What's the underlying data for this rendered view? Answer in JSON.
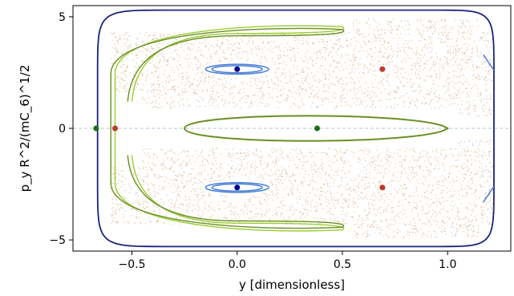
{
  "chart_data": {
    "type": "scatter",
    "title": "",
    "xlabel": "y [dimensionless]",
    "ylabel": "p_y R^2/(mC_6)^1/2",
    "xlim": [
      -0.78,
      1.3
    ],
    "ylim": [
      -5.5,
      5.5
    ],
    "x_ticks": [
      -0.5,
      0.0,
      0.5,
      1.0
    ],
    "y_ticks": [
      -5,
      0,
      5
    ],
    "x_tick_labels": [
      "−0.5",
      "0.0",
      "0.5",
      "1.0"
    ],
    "y_tick_labels": [
      "−5",
      "0",
      "5"
    ],
    "grid": false,
    "reference_line_y": 0,
    "colors": {
      "boundary": "#1a237e",
      "chaotic": "#c8986a",
      "regular_green": "#6b8e23",
      "light_green": "#9acd32",
      "regular_blue": "#4a7fd6",
      "point_green": "#1a6e1a",
      "point_red": "#c0392b",
      "point_blue": "#00008b"
    },
    "series": [
      {
        "marker": "green",
        "x": [
          -0.67,
          0.38
        ],
        "y": [
          0.0,
          0.0
        ]
      },
      {
        "marker": "red",
        "x": [
          -0.58,
          0.69,
          0.69
        ],
        "y": [
          0.0,
          2.65,
          -2.65
        ]
      },
      {
        "marker": "blue",
        "x": [
          0.0,
          0.0
        ],
        "y": [
          2.65,
          -2.65
        ]
      }
    ]
  }
}
